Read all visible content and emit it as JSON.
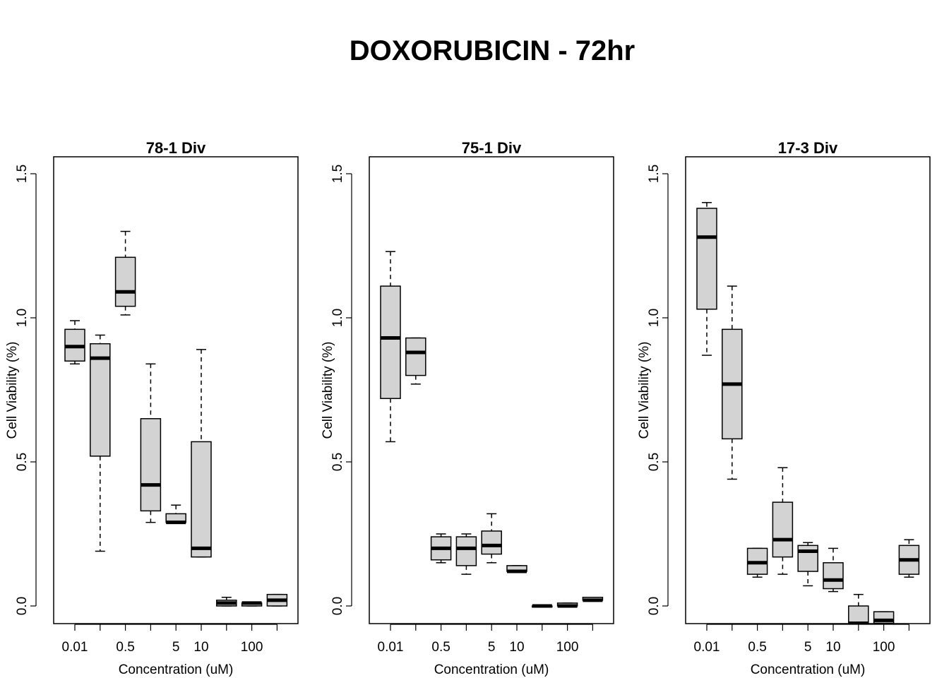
{
  "title": "DOXORUBICIN - 72hr",
  "colors": {
    "box_fill": "#d3d3d3",
    "stroke": "#000000"
  },
  "chart_data": [
    {
      "type": "box",
      "title": "78-1 Div",
      "xlabel": "Concentration (uM)",
      "ylabel": "Cell Viability (%)",
      "ylim": [
        -0.06,
        1.56
      ],
      "yticks": [
        0.0,
        0.5,
        1.0,
        1.5
      ],
      "ytick_labels": [
        "0.0",
        "0.5",
        "1.0",
        "1.5"
      ],
      "xtick_labels": [
        "0.01",
        "",
        "0.5",
        "",
        "5",
        "10",
        "",
        "100",
        ""
      ],
      "boxes": [
        {
          "min": 0.84,
          "q1": 0.85,
          "median": 0.9,
          "q3": 0.96,
          "max": 0.99
        },
        {
          "min": 0.19,
          "q1": 0.52,
          "median": 0.86,
          "q3": 0.91,
          "max": 0.94
        },
        {
          "min": 1.01,
          "q1": 1.04,
          "median": 1.09,
          "q3": 1.21,
          "max": 1.3
        },
        {
          "min": 0.29,
          "q1": 0.33,
          "median": 0.42,
          "q3": 0.65,
          "max": 0.84
        },
        {
          "min": 0.29,
          "q1": 0.29,
          "median": 0.29,
          "q3": 0.32,
          "max": 0.35
        },
        {
          "min": 0.17,
          "q1": 0.17,
          "median": 0.2,
          "q3": 0.57,
          "max": 0.89
        },
        {
          "min": 0.0,
          "q1": 0.0,
          "median": 0.01,
          "q3": 0.02,
          "max": 0.03
        },
        {
          "min": 0.0,
          "q1": 0.0,
          "median": 0.01,
          "q3": 0.01,
          "max": 0.01
        },
        {
          "min": 0.0,
          "q1": 0.0,
          "median": 0.02,
          "q3": 0.04,
          "max": 0.04
        }
      ]
    },
    {
      "type": "box",
      "title": "75-1 Div",
      "xlabel": "Concentration (uM)",
      "ylabel": "Cell Viability (%)",
      "ylim": [
        -0.06,
        1.56
      ],
      "yticks": [
        0.0,
        0.5,
        1.0,
        1.5
      ],
      "ytick_labels": [
        "0.0",
        "0.5",
        "1.0",
        "1.5"
      ],
      "xtick_labels": [
        "0.01",
        "",
        "0.5",
        "",
        "5",
        "10",
        "",
        "100",
        ""
      ],
      "boxes": [
        {
          "min": 0.57,
          "q1": 0.72,
          "median": 0.93,
          "q3": 1.11,
          "max": 1.23
        },
        {
          "min": 0.77,
          "q1": 0.8,
          "median": 0.88,
          "q3": 0.93,
          "max": 0.93
        },
        {
          "min": 0.15,
          "q1": 0.16,
          "median": 0.2,
          "q3": 0.24,
          "max": 0.25
        },
        {
          "min": 0.11,
          "q1": 0.14,
          "median": 0.2,
          "q3": 0.24,
          "max": 0.25
        },
        {
          "min": 0.15,
          "q1": 0.18,
          "median": 0.21,
          "q3": 0.26,
          "max": 0.32
        },
        {
          "min": 0.12,
          "q1": 0.12,
          "median": 0.12,
          "q3": 0.14,
          "max": 0.14
        },
        {
          "min": 0.0,
          "q1": 0.0,
          "median": 0.0,
          "q3": 0.0,
          "max": 0.0
        },
        {
          "min": 0.0,
          "q1": 0.0,
          "median": 0.0,
          "q3": 0.01,
          "max": 0.01
        },
        {
          "min": 0.02,
          "q1": 0.02,
          "median": 0.02,
          "q3": 0.03,
          "max": 0.03
        }
      ]
    },
    {
      "type": "box",
      "title": "17-3 Div",
      "xlabel": "Concentration (uM)",
      "ylabel": "Cell Viability (%)",
      "ylim": [
        -0.06,
        1.56
      ],
      "yticks": [
        0.0,
        0.5,
        1.0,
        1.5
      ],
      "ytick_labels": [
        "0.0",
        "0.5",
        "1.0",
        "1.5"
      ],
      "xtick_labels": [
        "0.01",
        "",
        "0.5",
        "",
        "5",
        "10",
        "",
        "100",
        ""
      ],
      "boxes": [
        {
          "min": 0.87,
          "q1": 1.03,
          "median": 1.28,
          "q3": 1.38,
          "max": 1.4
        },
        {
          "min": 0.44,
          "q1": 0.58,
          "median": 0.77,
          "q3": 0.96,
          "max": 1.11
        },
        {
          "min": 0.1,
          "q1": 0.11,
          "median": 0.15,
          "q3": 0.2,
          "max": 0.2
        },
        {
          "min": 0.11,
          "q1": 0.17,
          "median": 0.23,
          "q3": 0.36,
          "max": 0.48
        },
        {
          "min": 0.07,
          "q1": 0.12,
          "median": 0.19,
          "q3": 0.21,
          "max": 0.22
        },
        {
          "min": 0.05,
          "q1": 0.06,
          "median": 0.09,
          "q3": 0.15,
          "max": 0.2
        },
        {
          "min": -0.06,
          "q1": -0.06,
          "median": -0.06,
          "q3": 0.0,
          "max": 0.04
        },
        {
          "min": -0.06,
          "q1": -0.06,
          "median": -0.05,
          "q3": -0.02,
          "max": -0.02
        },
        {
          "min": 0.1,
          "q1": 0.11,
          "median": 0.16,
          "q3": 0.21,
          "max": 0.23
        }
      ]
    }
  ]
}
